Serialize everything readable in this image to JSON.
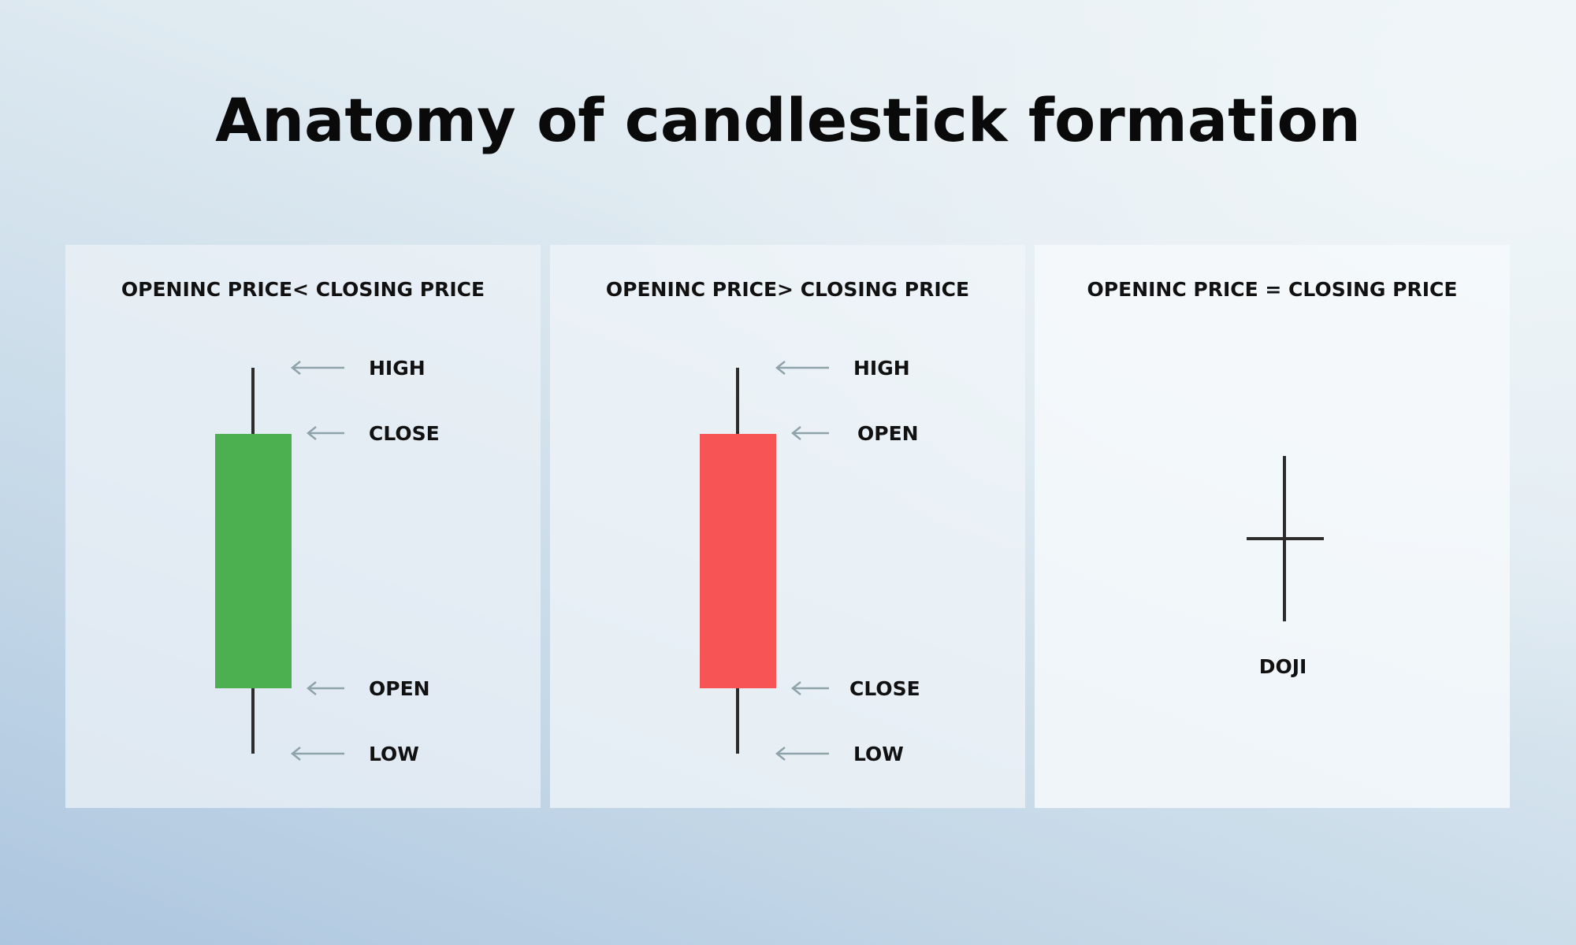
{
  "title": "Anatomy of candlestick formation",
  "colors": {
    "bullish_body": "#4caf50",
    "bearish_body": "#f75555",
    "wick": "#2c2c2c",
    "arrow": "#8fa3ab"
  },
  "panels": [
    {
      "heading": "OPENINC PRICE< CLOSING PRICE",
      "labels": {
        "high": "HIGH",
        "upper": "CLOSE",
        "lower": "OPEN",
        "low": "LOW"
      }
    },
    {
      "heading": "OPENINC PRICE> CLOSING PRICE",
      "labels": {
        "high": "HIGH",
        "upper": "OPEN",
        "lower": "CLOSE",
        "low": "LOW"
      }
    },
    {
      "heading": "OPENINC PRICE = CLOSING PRICE",
      "labels": {
        "doji": "DOJI"
      }
    }
  ]
}
